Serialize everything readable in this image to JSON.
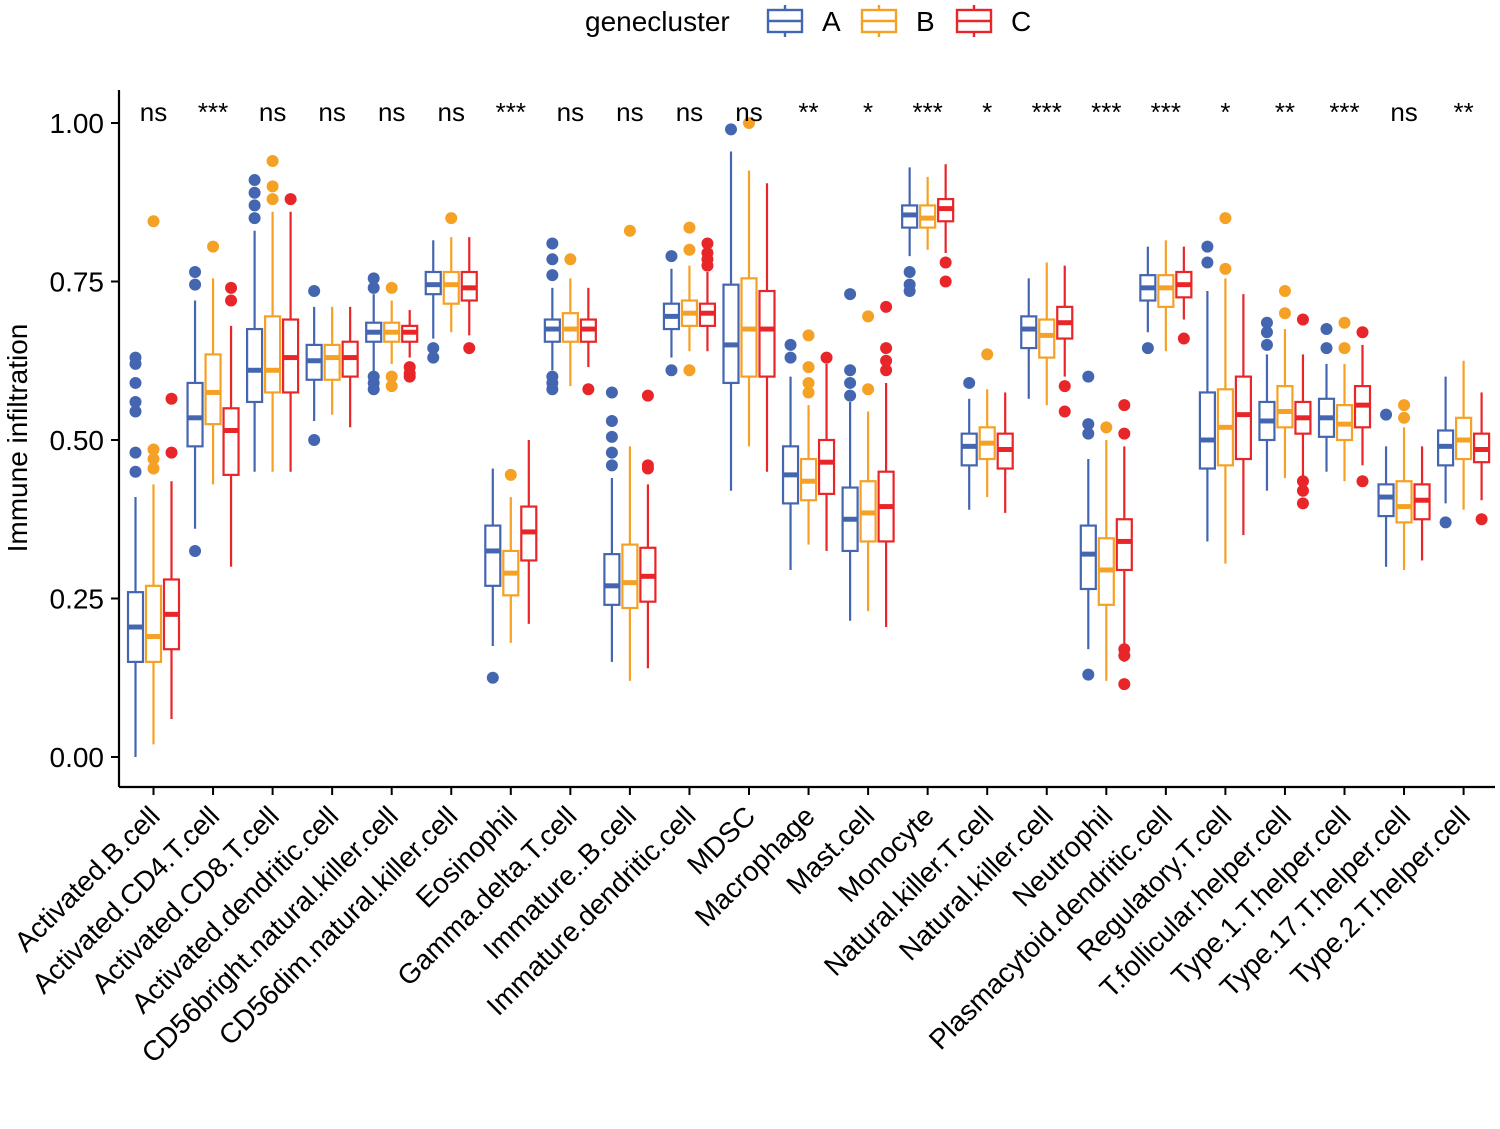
{
  "chart_data": {
    "type": "box",
    "ylabel": "Immune infiltration",
    "xlabel": "",
    "ylim": [
      -0.05,
      1.05
    ],
    "yticks": [
      0.0,
      0.25,
      0.5,
      0.75,
      1.0
    ],
    "ytick_labels": [
      "0.00",
      "0.25",
      "0.50",
      "0.75",
      "1.00"
    ],
    "legend": {
      "title": "genecluster",
      "position": "top",
      "entries": [
        {
          "name": "A",
          "color": "#4466b0"
        },
        {
          "name": "B",
          "color": "#f5a125"
        },
        {
          "name": "C",
          "color": "#e8262a"
        }
      ]
    },
    "categories": [
      "Activated.B.cell",
      "Activated.CD4.T.cell",
      "Activated.CD8.T.cell",
      "Activated.dendritic.cell",
      "CD56bright.natural.killer.cell",
      "CD56dim.natural.killer.cell",
      "Eosinophil",
      "Gamma.delta.T.cell",
      "Immature..B.cell",
      "Immature.dendritic.cell",
      "MDSC",
      "Macrophage",
      "Mast.cell",
      "Monocyte",
      "Natural.killer.T.cell",
      "Natural.killer.cell",
      "Neutrophil",
      "Plasmacytoid.dendritic.cell",
      "Regulatory.T.cell",
      "T.follicular.helper.cell",
      "Type.1.T.helper.cell",
      "Type.17.T.helper.cell",
      "Type.2.T.helper.cell"
    ],
    "significance": [
      "ns",
      "***",
      "ns",
      "ns",
      "ns",
      "ns",
      "***",
      "ns",
      "ns",
      "ns",
      "ns",
      "**",
      "*",
      "***",
      "*",
      "***",
      "***",
      "***",
      "*",
      "**",
      "***",
      "ns",
      "**"
    ],
    "series": [
      {
        "name": "A",
        "boxes": [
          {
            "low": 0.0,
            "q1": 0.15,
            "med": 0.205,
            "q3": 0.26,
            "high": 0.41,
            "outliers": [
              0.45,
              0.48,
              0.545,
              0.56,
              0.59,
              0.62,
              0.63
            ]
          },
          {
            "low": 0.36,
            "q1": 0.49,
            "med": 0.535,
            "q3": 0.59,
            "high": 0.72,
            "outliers": [
              0.325,
              0.745,
              0.765
            ]
          },
          {
            "low": 0.45,
            "q1": 0.56,
            "med": 0.61,
            "q3": 0.675,
            "high": 0.83,
            "outliers": [
              0.85,
              0.87,
              0.89,
              0.91
            ]
          },
          {
            "low": 0.53,
            "q1": 0.595,
            "med": 0.625,
            "q3": 0.65,
            "high": 0.71,
            "outliers": [
              0.5,
              0.735
            ]
          },
          {
            "low": 0.6,
            "q1": 0.655,
            "med": 0.67,
            "q3": 0.685,
            "high": 0.73,
            "outliers": [
              0.58,
              0.59,
              0.6,
              0.74,
              0.755
            ]
          },
          {
            "low": 0.66,
            "q1": 0.73,
            "med": 0.745,
            "q3": 0.765,
            "high": 0.815,
            "outliers": [
              0.63,
              0.645
            ]
          },
          {
            "low": 0.175,
            "q1": 0.27,
            "med": 0.325,
            "q3": 0.365,
            "high": 0.455,
            "outliers": [
              0.125
            ]
          },
          {
            "low": 0.61,
            "q1": 0.655,
            "med": 0.675,
            "q3": 0.69,
            "high": 0.74,
            "outliers": [
              0.58,
              0.59,
              0.6,
              0.76,
              0.785,
              0.81
            ]
          },
          {
            "low": 0.15,
            "q1": 0.24,
            "med": 0.27,
            "q3": 0.32,
            "high": 0.44,
            "outliers": [
              0.46,
              0.48,
              0.505,
              0.53,
              0.575
            ]
          },
          {
            "low": 0.63,
            "q1": 0.675,
            "med": 0.695,
            "q3": 0.715,
            "high": 0.77,
            "outliers": [
              0.61,
              0.79
            ]
          },
          {
            "low": 0.42,
            "q1": 0.59,
            "med": 0.65,
            "q3": 0.745,
            "high": 0.955,
            "outliers": [
              0.99
            ]
          },
          {
            "low": 0.295,
            "q1": 0.4,
            "med": 0.445,
            "q3": 0.49,
            "high": 0.6,
            "outliers": [
              0.63,
              0.65
            ]
          },
          {
            "low": 0.215,
            "q1": 0.325,
            "med": 0.375,
            "q3": 0.425,
            "high": 0.56,
            "outliers": [
              0.57,
              0.59,
              0.61,
              0.73
            ]
          },
          {
            "low": 0.79,
            "q1": 0.835,
            "med": 0.855,
            "q3": 0.87,
            "high": 0.93,
            "outliers": [
              0.735,
              0.745,
              0.765
            ]
          },
          {
            "low": 0.39,
            "q1": 0.46,
            "med": 0.49,
            "q3": 0.51,
            "high": 0.565,
            "outliers": [
              0.59
            ]
          },
          {
            "low": 0.565,
            "q1": 0.645,
            "med": 0.675,
            "q3": 0.695,
            "high": 0.755,
            "outliers": []
          },
          {
            "low": 0.17,
            "q1": 0.265,
            "med": 0.32,
            "q3": 0.365,
            "high": 0.47,
            "outliers": [
              0.13,
              0.51,
              0.525,
              0.6
            ]
          },
          {
            "low": 0.67,
            "q1": 0.72,
            "med": 0.74,
            "q3": 0.76,
            "high": 0.805,
            "outliers": [
              0.645
            ]
          },
          {
            "low": 0.34,
            "q1": 0.455,
            "med": 0.5,
            "q3": 0.575,
            "high": 0.735,
            "outliers": [
              0.78,
              0.805
            ]
          },
          {
            "low": 0.42,
            "q1": 0.5,
            "med": 0.53,
            "q3": 0.56,
            "high": 0.635,
            "outliers": [
              0.65,
              0.67,
              0.685
            ]
          },
          {
            "low": 0.45,
            "q1": 0.505,
            "med": 0.535,
            "q3": 0.565,
            "high": 0.62,
            "outliers": [
              0.645,
              0.675
            ]
          },
          {
            "low": 0.3,
            "q1": 0.38,
            "med": 0.41,
            "q3": 0.43,
            "high": 0.49,
            "outliers": [
              0.54
            ]
          },
          {
            "low": 0.4,
            "q1": 0.46,
            "med": 0.49,
            "q3": 0.515,
            "high": 0.6,
            "outliers": [
              0.37
            ]
          }
        ]
      },
      {
        "name": "B",
        "boxes": [
          {
            "low": 0.02,
            "q1": 0.15,
            "med": 0.19,
            "q3": 0.27,
            "high": 0.43,
            "outliers": [
              0.455,
              0.47,
              0.485,
              0.845
            ]
          },
          {
            "low": 0.43,
            "q1": 0.525,
            "med": 0.575,
            "q3": 0.635,
            "high": 0.755,
            "outliers": [
              0.805
            ]
          },
          {
            "low": 0.45,
            "q1": 0.575,
            "med": 0.61,
            "q3": 0.695,
            "high": 0.86,
            "outliers": [
              0.88,
              0.9,
              0.94
            ]
          },
          {
            "low": 0.54,
            "q1": 0.595,
            "med": 0.63,
            "q3": 0.65,
            "high": 0.71,
            "outliers": []
          },
          {
            "low": 0.62,
            "q1": 0.655,
            "med": 0.67,
            "q3": 0.685,
            "high": 0.72,
            "outliers": [
              0.585,
              0.6,
              0.74
            ]
          },
          {
            "low": 0.67,
            "q1": 0.715,
            "med": 0.745,
            "q3": 0.765,
            "high": 0.82,
            "outliers": [
              0.85
            ]
          },
          {
            "low": 0.18,
            "q1": 0.255,
            "med": 0.29,
            "q3": 0.325,
            "high": 0.41,
            "outliers": [
              0.445
            ]
          },
          {
            "low": 0.585,
            "q1": 0.655,
            "med": 0.675,
            "q3": 0.7,
            "high": 0.755,
            "outliers": [
              0.785
            ]
          },
          {
            "low": 0.12,
            "q1": 0.235,
            "med": 0.275,
            "q3": 0.335,
            "high": 0.49,
            "outliers": [
              0.83
            ]
          },
          {
            "low": 0.64,
            "q1": 0.68,
            "med": 0.7,
            "q3": 0.72,
            "high": 0.775,
            "outliers": [
              0.61,
              0.8,
              0.835
            ]
          },
          {
            "low": 0.49,
            "q1": 0.6,
            "med": 0.675,
            "q3": 0.755,
            "high": 0.925,
            "outliers": [
              1.0
            ]
          },
          {
            "low": 0.335,
            "q1": 0.405,
            "med": 0.435,
            "q3": 0.47,
            "high": 0.555,
            "outliers": [
              0.575,
              0.59,
              0.615,
              0.665
            ]
          },
          {
            "low": 0.23,
            "q1": 0.34,
            "med": 0.385,
            "q3": 0.435,
            "high": 0.545,
            "outliers": [
              0.58,
              0.695
            ]
          },
          {
            "low": 0.8,
            "q1": 0.835,
            "med": 0.85,
            "q3": 0.87,
            "high": 0.915,
            "outliers": []
          },
          {
            "low": 0.41,
            "q1": 0.47,
            "med": 0.495,
            "q3": 0.52,
            "high": 0.58,
            "outliers": [
              0.635
            ]
          },
          {
            "low": 0.555,
            "q1": 0.63,
            "med": 0.665,
            "q3": 0.69,
            "high": 0.78,
            "outliers": []
          },
          {
            "low": 0.12,
            "q1": 0.24,
            "med": 0.295,
            "q3": 0.345,
            "high": 0.5,
            "outliers": [
              0.52
            ]
          },
          {
            "low": 0.64,
            "q1": 0.71,
            "med": 0.74,
            "q3": 0.76,
            "high": 0.815,
            "outliers": []
          },
          {
            "low": 0.305,
            "q1": 0.46,
            "med": 0.52,
            "q3": 0.58,
            "high": 0.755,
            "outliers": [
              0.77,
              0.85
            ]
          },
          {
            "low": 0.44,
            "q1": 0.52,
            "med": 0.545,
            "q3": 0.585,
            "high": 0.675,
            "outliers": [
              0.7,
              0.735
            ]
          },
          {
            "low": 0.435,
            "q1": 0.5,
            "med": 0.525,
            "q3": 0.555,
            "high": 0.62,
            "outliers": [
              0.645,
              0.685
            ]
          },
          {
            "low": 0.295,
            "q1": 0.37,
            "med": 0.395,
            "q3": 0.435,
            "high": 0.52,
            "outliers": [
              0.535,
              0.555
            ]
          },
          {
            "low": 0.39,
            "q1": 0.47,
            "med": 0.5,
            "q3": 0.535,
            "high": 0.625,
            "outliers": []
          }
        ]
      },
      {
        "name": "C",
        "boxes": [
          {
            "low": 0.06,
            "q1": 0.17,
            "med": 0.225,
            "q3": 0.28,
            "high": 0.435,
            "outliers": [
              0.48,
              0.565
            ]
          },
          {
            "low": 0.3,
            "q1": 0.445,
            "med": 0.515,
            "q3": 0.55,
            "high": 0.68,
            "outliers": [
              0.72,
              0.74
            ]
          },
          {
            "low": 0.45,
            "q1": 0.575,
            "med": 0.63,
            "q3": 0.69,
            "high": 0.86,
            "outliers": [
              0.88
            ]
          },
          {
            "low": 0.52,
            "q1": 0.6,
            "med": 0.63,
            "q3": 0.655,
            "high": 0.71,
            "outliers": []
          },
          {
            "low": 0.63,
            "q1": 0.655,
            "med": 0.67,
            "q3": 0.68,
            "high": 0.705,
            "outliers": [
              0.6,
              0.605,
              0.615
            ]
          },
          {
            "low": 0.665,
            "q1": 0.72,
            "med": 0.74,
            "q3": 0.765,
            "high": 0.82,
            "outliers": [
              0.645
            ]
          },
          {
            "low": 0.21,
            "q1": 0.31,
            "med": 0.355,
            "q3": 0.395,
            "high": 0.5,
            "outliers": []
          },
          {
            "low": 0.615,
            "q1": 0.655,
            "med": 0.675,
            "q3": 0.69,
            "high": 0.74,
            "outliers": [
              0.58
            ]
          },
          {
            "low": 0.14,
            "q1": 0.245,
            "med": 0.285,
            "q3": 0.33,
            "high": 0.43,
            "outliers": [
              0.455,
              0.46,
              0.57
            ]
          },
          {
            "low": 0.64,
            "q1": 0.68,
            "med": 0.7,
            "q3": 0.715,
            "high": 0.765,
            "outliers": [
              0.775,
              0.785,
              0.795,
              0.81
            ]
          },
          {
            "low": 0.45,
            "q1": 0.6,
            "med": 0.675,
            "q3": 0.735,
            "high": 0.905,
            "outliers": []
          },
          {
            "low": 0.325,
            "q1": 0.415,
            "med": 0.465,
            "q3": 0.5,
            "high": 0.62,
            "outliers": [
              0.63
            ]
          },
          {
            "low": 0.205,
            "q1": 0.34,
            "med": 0.395,
            "q3": 0.45,
            "high": 0.59,
            "outliers": [
              0.61,
              0.625,
              0.645,
              0.71
            ]
          },
          {
            "low": 0.795,
            "q1": 0.845,
            "med": 0.865,
            "q3": 0.88,
            "high": 0.935,
            "outliers": [
              0.75,
              0.78
            ]
          },
          {
            "low": 0.385,
            "q1": 0.455,
            "med": 0.485,
            "q3": 0.51,
            "high": 0.575,
            "outliers": []
          },
          {
            "low": 0.6,
            "q1": 0.66,
            "med": 0.685,
            "q3": 0.71,
            "high": 0.775,
            "outliers": [
              0.545,
              0.585
            ]
          },
          {
            "low": 0.15,
            "q1": 0.295,
            "med": 0.34,
            "q3": 0.375,
            "high": 0.49,
            "outliers": [
              0.115,
              0.16,
              0.17,
              0.51,
              0.555
            ]
          },
          {
            "low": 0.69,
            "q1": 0.725,
            "med": 0.745,
            "q3": 0.765,
            "high": 0.805,
            "outliers": [
              0.66
            ]
          },
          {
            "low": 0.35,
            "q1": 0.47,
            "med": 0.54,
            "q3": 0.6,
            "high": 0.73,
            "outliers": []
          },
          {
            "low": 0.44,
            "q1": 0.51,
            "med": 0.535,
            "q3": 0.56,
            "high": 0.635,
            "outliers": [
              0.4,
              0.42,
              0.435,
              0.69
            ]
          },
          {
            "low": 0.46,
            "q1": 0.52,
            "med": 0.555,
            "q3": 0.585,
            "high": 0.65,
            "outliers": [
              0.435,
              0.67
            ]
          },
          {
            "low": 0.31,
            "q1": 0.375,
            "med": 0.405,
            "q3": 0.43,
            "high": 0.49,
            "outliers": []
          },
          {
            "low": 0.405,
            "q1": 0.465,
            "med": 0.485,
            "q3": 0.51,
            "high": 0.575,
            "outliers": [
              0.375
            ]
          }
        ]
      }
    ]
  }
}
